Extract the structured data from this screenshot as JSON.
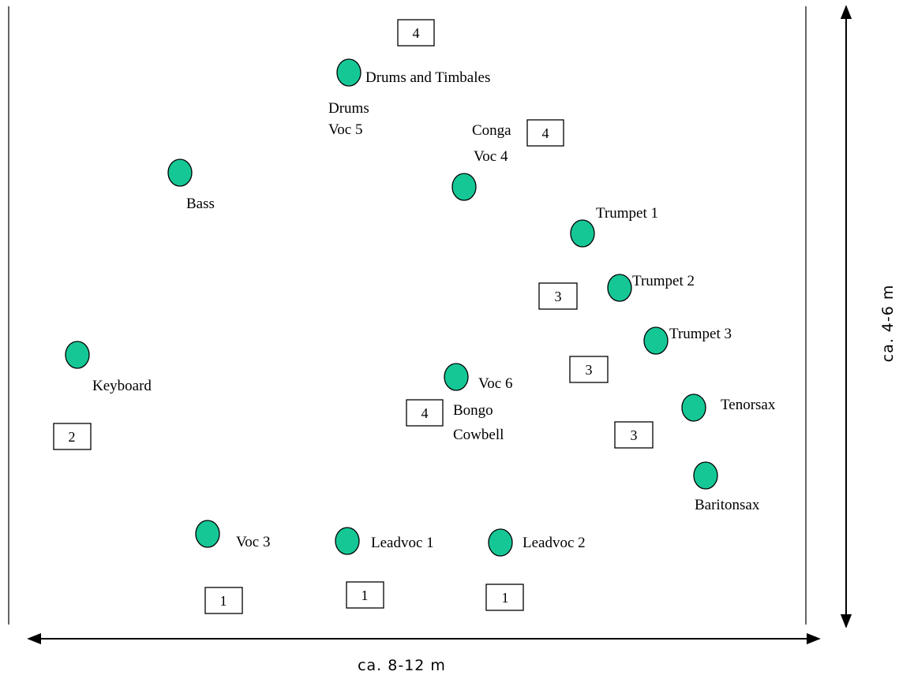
{
  "instruments": [
    {
      "id": "drums-timbales",
      "label": [
        "Drums and Timbales"
      ]
    },
    {
      "id": "drums-voc5",
      "label": [
        "Drums",
        "Voc 5"
      ]
    },
    {
      "id": "conga-voc4",
      "label": [
        "Conga",
        "Voc 4"
      ]
    },
    {
      "id": "bass",
      "label": [
        "Bass"
      ]
    },
    {
      "id": "trumpet-1",
      "label": [
        "Trumpet 1"
      ]
    },
    {
      "id": "trumpet-2",
      "label": [
        "Trumpet 2"
      ]
    },
    {
      "id": "trumpet-3",
      "label": [
        "Trumpet 3"
      ]
    },
    {
      "id": "keyboard",
      "label": [
        "Keyboard"
      ]
    },
    {
      "id": "voc-6",
      "label": [
        "Voc 6"
      ]
    },
    {
      "id": "bongo-cowbell",
      "label": [
        "Bongo",
        "Cowbell"
      ]
    },
    {
      "id": "tenorsax",
      "label": [
        "Tenorsax"
      ]
    },
    {
      "id": "baritonsax",
      "label": [
        "Baritonsax"
      ]
    },
    {
      "id": "voc-3",
      "label": [
        "Voc 3"
      ]
    },
    {
      "id": "leadvoc-1",
      "label": [
        "Leadvoc 1"
      ]
    },
    {
      "id": "leadvoc-2",
      "label": [
        "Leadvoc 2"
      ]
    }
  ],
  "monitor_boxes": [
    "4",
    "4",
    "3",
    "3",
    "4",
    "2",
    "3",
    "1",
    "1",
    "1"
  ],
  "dimensions": {
    "width_label": "ca. 8-12 m",
    "depth_label": "ca. 4-6 m"
  }
}
